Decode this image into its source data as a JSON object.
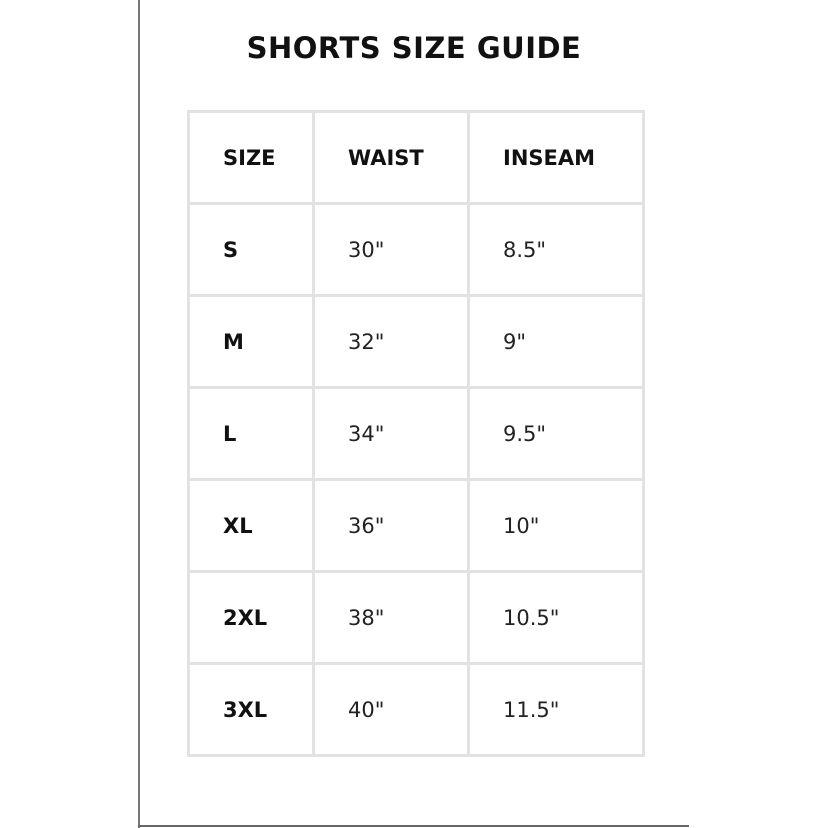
{
  "title": "SHORTS SIZE GUIDE",
  "table": {
    "headers": [
      "SIZE",
      "WAIST",
      "INSEAM"
    ],
    "rows": [
      [
        "S",
        "30\"",
        "8.5\""
      ],
      [
        "M",
        "32\"",
        "9\""
      ],
      [
        "L",
        "34\"",
        "9.5\""
      ],
      [
        "XL",
        "36\"",
        "10\""
      ],
      [
        "2XL",
        "38\"",
        "10.5\""
      ],
      [
        "3XL",
        "40\"",
        "11.5\""
      ]
    ]
  }
}
